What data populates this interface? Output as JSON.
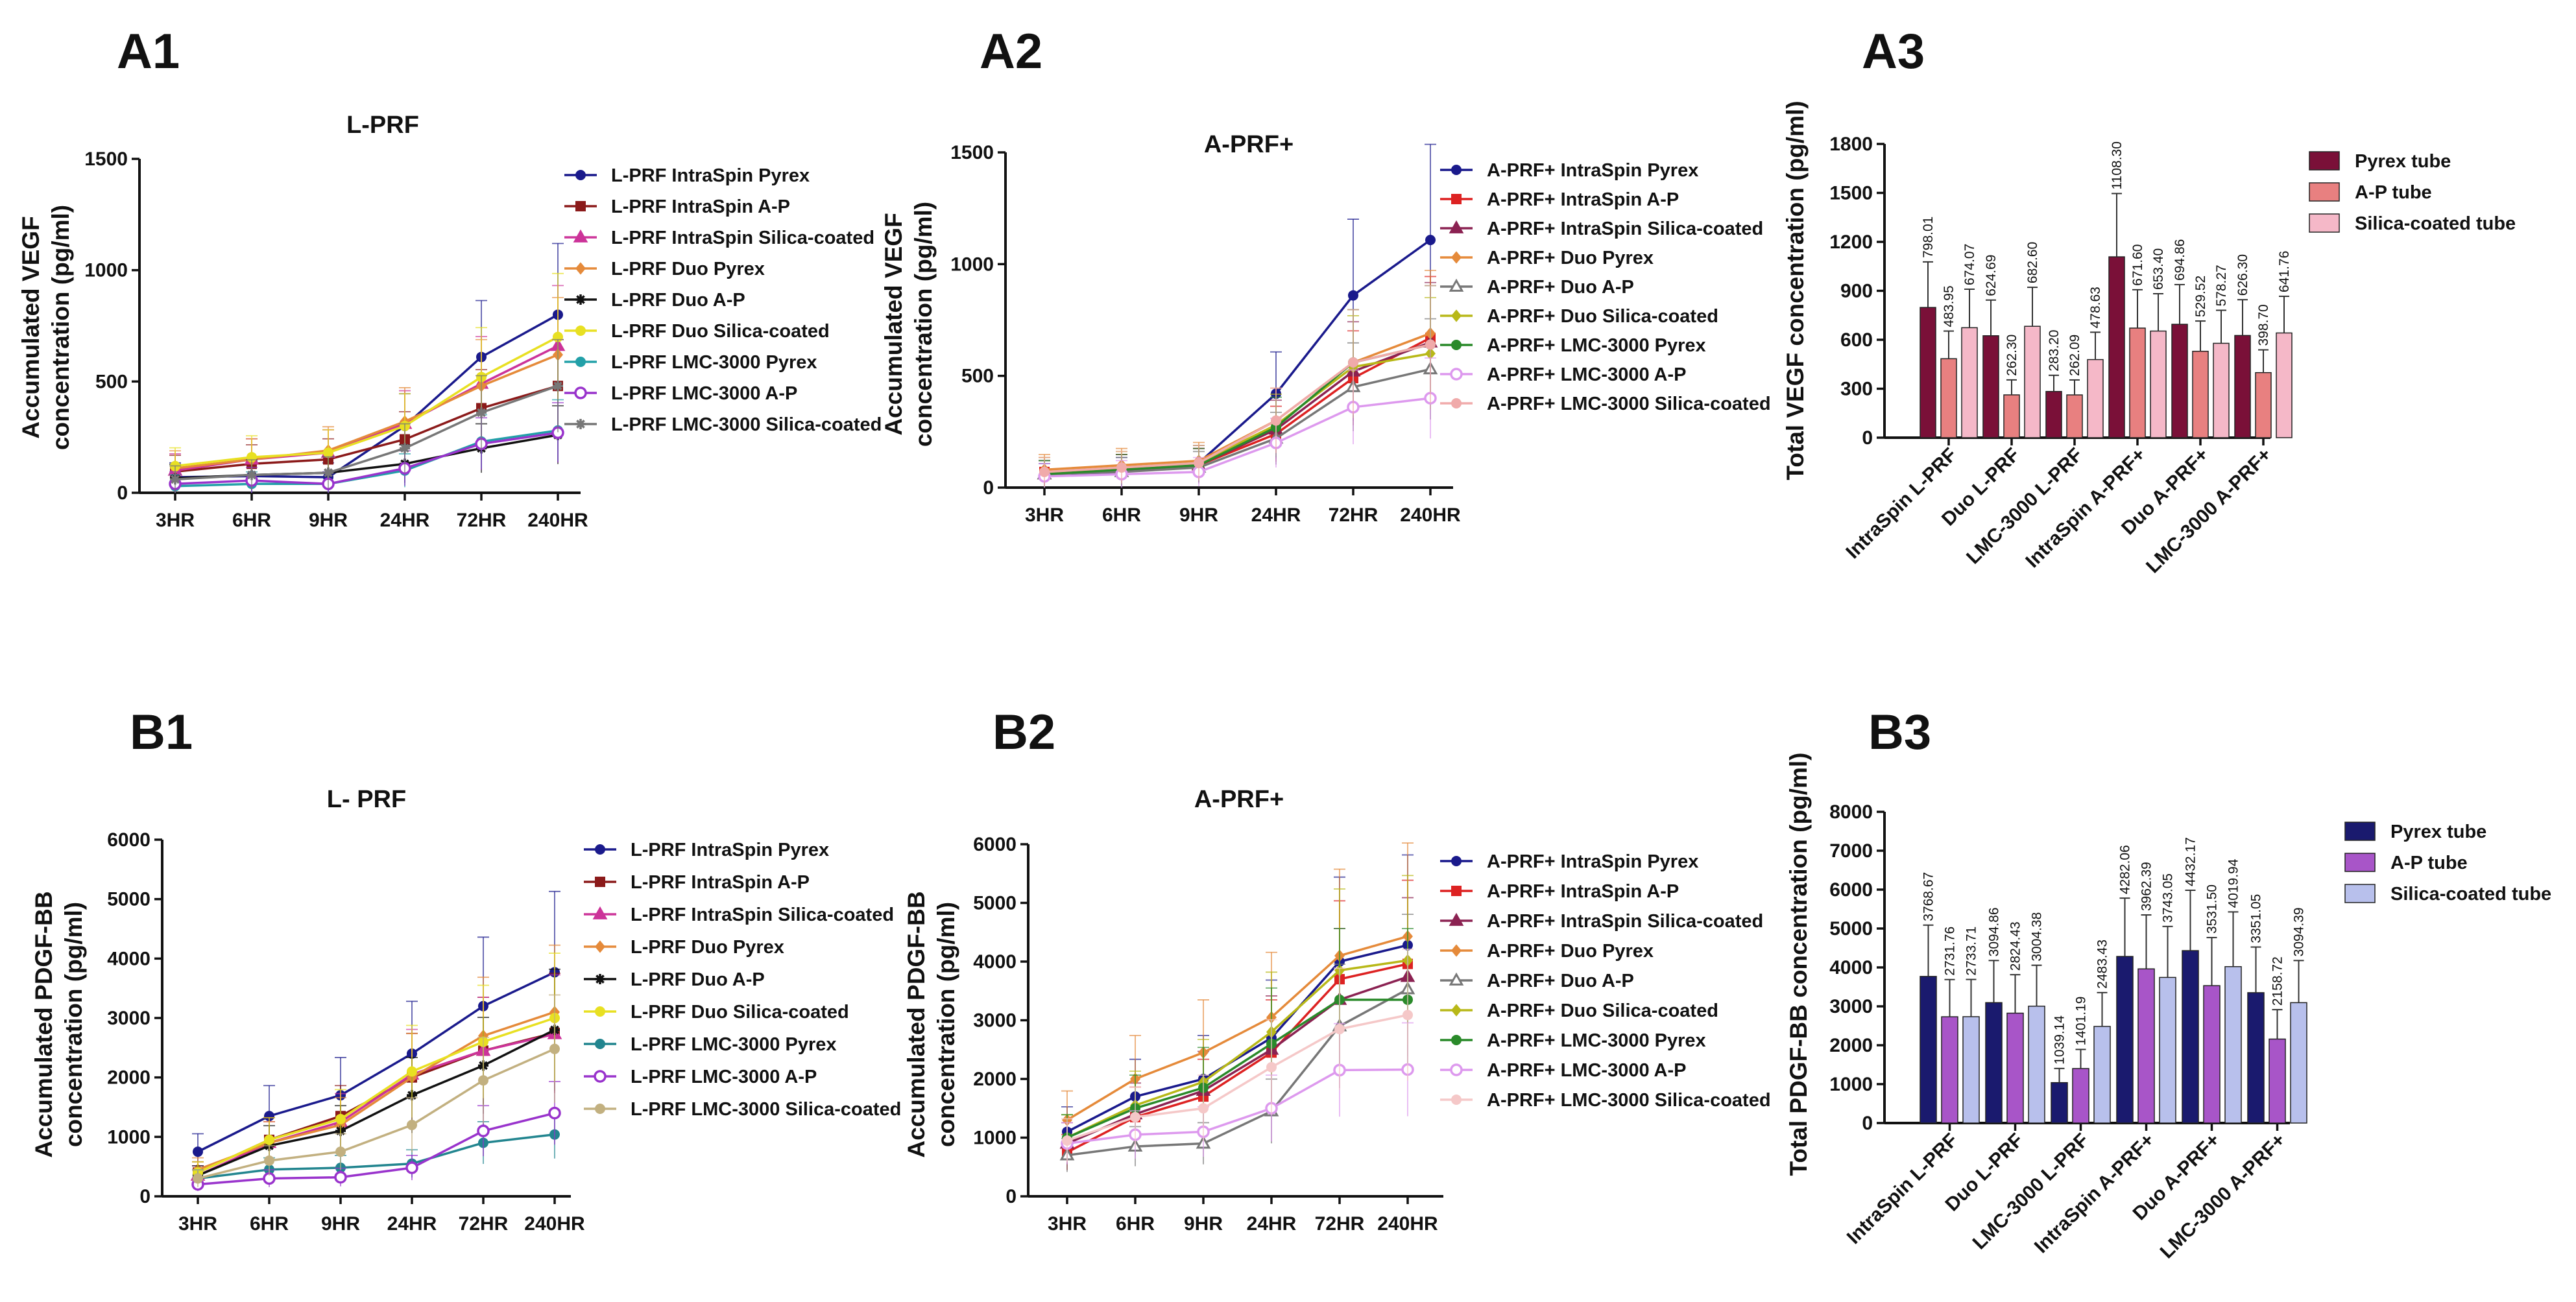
{
  "chart_data": [
    {
      "panel": "A1",
      "type": "line",
      "title": "L-PRF",
      "ylabel": "Accumulated VEGF concentration (pg/ml)",
      "ylabel_lines": [
        "Accumulated VEGF",
        "concentration (pg/ml)"
      ],
      "categories": [
        "3HR",
        "6HR",
        "9HR",
        "24HR",
        "72HR",
        "240HR"
      ],
      "ylim": [
        0,
        1500
      ],
      "yticks": [
        "0",
        "500",
        "1000",
        "1500"
      ],
      "series": [
        {
          "name": "L-PRF IntraSpin Pyrex",
          "color": "#1a1a8c",
          "marker": "circle",
          "values": [
            70,
            75,
            70,
            300,
            610,
            800
          ]
        },
        {
          "name": "L-PRF IntraSpin A-P",
          "color": "#8b1a1a",
          "marker": "square",
          "values": [
            95,
            130,
            150,
            240,
            380,
            480
          ]
        },
        {
          "name": "L-PRF IntraSpin Silica-coated",
          "color": "#cc3399",
          "marker": "triangle",
          "values": [
            100,
            150,
            180,
            310,
            490,
            660
          ]
        },
        {
          "name": "L-PRF Duo Pyrex",
          "color": "#e58a3a",
          "marker": "diamond",
          "values": [
            110,
            150,
            190,
            320,
            480,
            620
          ]
        },
        {
          "name": "L-PRF Duo A-P",
          "color": "#111111",
          "marker": "star",
          "values": [
            65,
            80,
            90,
            130,
            200,
            260
          ]
        },
        {
          "name": "L-PRF Duo Silica-coated",
          "color": "#e8e022",
          "marker": "circle",
          "values": [
            120,
            160,
            180,
            300,
            520,
            700
          ]
        },
        {
          "name": "L-PRF LMC-3000 Pyrex",
          "color": "#22a0a8",
          "marker": "circle",
          "values": [
            30,
            40,
            40,
            100,
            230,
            280
          ]
        },
        {
          "name": "L-PRF LMC-3000 A-P",
          "color": "#9933cc",
          "marker": "circle-open",
          "values": [
            40,
            55,
            40,
            110,
            220,
            270
          ]
        },
        {
          "name": "L-PRF LMC-3000 Silica-coated",
          "color": "#777777",
          "marker": "star",
          "values": [
            60,
            80,
            90,
            200,
            360,
            480
          ]
        }
      ]
    },
    {
      "panel": "A2",
      "type": "line",
      "title": "A-PRF+",
      "ylabel": "Accumulated VEGF concentration (pg/ml)",
      "ylabel_lines": [
        "Accumulated VEGF",
        "concentration (pg/ml)"
      ],
      "categories": [
        "3HR",
        "6HR",
        "9HR",
        "24HR",
        "72HR",
        "240HR"
      ],
      "ylim": [
        0,
        1500
      ],
      "yticks": [
        "0",
        "500",
        "1000",
        "1500"
      ],
      "series": [
        {
          "name": "A-PRF+ IntraSpin Pyrex",
          "color": "#1a1a8c",
          "marker": "circle",
          "values": [
            50,
            70,
            110,
            420,
            860,
            1108
          ]
        },
        {
          "name": "A-PRF+ IntraSpin A-P",
          "color": "#dd2222",
          "marker": "square",
          "values": [
            70,
            80,
            100,
            240,
            490,
            670
          ]
        },
        {
          "name": "A-PRF+ IntraSpin Silica-coated",
          "color": "#8b2252",
          "marker": "triangle",
          "values": [
            60,
            80,
            100,
            260,
            520,
            650
          ]
        },
        {
          "name": "A-PRF+ Duo Pyrex",
          "color": "#e58a3a",
          "marker": "diamond",
          "values": [
            80,
            100,
            120,
            300,
            560,
            690
          ]
        },
        {
          "name": "A-PRF+ Duo A-P",
          "color": "#777777",
          "marker": "triangle-open",
          "values": [
            60,
            70,
            90,
            220,
            450,
            530
          ]
        },
        {
          "name": "A-PRF+ Duo Silica-coated",
          "color": "#b8b818",
          "marker": "diamond",
          "values": [
            70,
            90,
            110,
            280,
            540,
            600
          ]
        },
        {
          "name": "A-PRF+ LMC-3000 Pyrex",
          "color": "#2a8a2a",
          "marker": "circle",
          "values": [
            60,
            80,
            100,
            270,
            560,
            640
          ]
        },
        {
          "name": "A-PRF+ LMC-3000 A-P",
          "color": "#dd99ee",
          "marker": "circle-open",
          "values": [
            50,
            60,
            70,
            200,
            360,
            400
          ]
        },
        {
          "name": "A-PRF+ LMC-3000 Silica-coated",
          "color": "#f0aaaa",
          "marker": "circle",
          "values": [
            70,
            90,
            110,
            300,
            560,
            640
          ]
        }
      ]
    },
    {
      "panel": "A3",
      "type": "bar",
      "ylabel": "Total VEGF concentration (pg/ml)",
      "categories": [
        "IntraSpin L-PRF",
        "Duo L-PRF",
        "LMC-3000 L-PRF",
        "IntraSpin A-PRF+",
        "Duo A-PRF+",
        "LMC-3000 A-PRF+"
      ],
      "ylim": [
        0,
        1800
      ],
      "yticks": [
        "0",
        "300",
        "600",
        "900",
        "1200",
        "1500",
        "1800"
      ],
      "series": [
        {
          "name": "Pyrex tube",
          "color": "#7a1038",
          "values": [
            798.01,
            624.69,
            283.2,
            1108.3,
            694.86,
            626.3
          ],
          "labels": [
            "798.01",
            "624.69",
            "283.20",
            "1108.30",
            "694.86",
            "626.30"
          ]
        },
        {
          "name": "A-P tube",
          "color": "#e88080",
          "values": [
            483.95,
            262.3,
            262.09,
            671.6,
            529.52,
            398.7
          ],
          "labels": [
            "483.95",
            "262.30",
            "262.09",
            "671.60",
            "529.52",
            "398.70"
          ]
        },
        {
          "name": "Silica-coated tube",
          "color": "#f5b8c8",
          "values": [
            674.07,
            682.6,
            478.63,
            653.4,
            578.27,
            641.76
          ],
          "labels": [
            "674.07",
            "682.60",
            "478.63",
            "653.40",
            "578.27",
            "641.76"
          ]
        }
      ]
    },
    {
      "panel": "B1",
      "type": "line",
      "title": "L- PRF",
      "ylabel": "Accumulated PDGF-BB concentration (pg/ml)",
      "ylabel_lines": [
        "Accumulated PDGF-BB",
        "concentration (pg/ml)"
      ],
      "categories": [
        "3HR",
        "6HR",
        "9HR",
        "24HR",
        "72HR",
        "240HR"
      ],
      "ylim": [
        0,
        6000
      ],
      "yticks": [
        "0",
        "1000",
        "2000",
        "3000",
        "4000",
        "5000",
        "6000"
      ],
      "series": [
        {
          "name": "L-PRF IntraSpin Pyrex",
          "color": "#1a1a8c",
          "marker": "circle",
          "values": [
            750,
            1350,
            1700,
            2400,
            3200,
            3770
          ]
        },
        {
          "name": "L-PRF IntraSpin A-P",
          "color": "#8b1a1a",
          "marker": "square",
          "values": [
            400,
            950,
            1350,
            2000,
            2450,
            2750
          ]
        },
        {
          "name": "L-PRF IntraSpin Silica-coated",
          "color": "#cc3399",
          "marker": "triangle",
          "values": [
            350,
            900,
            1250,
            2050,
            2450,
            2730
          ]
        },
        {
          "name": "L-PRF Duo Pyrex",
          "color": "#e58a3a",
          "marker": "diamond",
          "values": [
            450,
            900,
            1200,
            2000,
            2700,
            3100
          ]
        },
        {
          "name": "L-PRF Duo A-P",
          "color": "#111111",
          "marker": "star",
          "values": [
            350,
            850,
            1100,
            1700,
            2200,
            2800
          ]
        },
        {
          "name": "L-PRF Duo Silica-coated",
          "color": "#e8e022",
          "marker": "circle",
          "values": [
            400,
            950,
            1300,
            2100,
            2600,
            3000
          ]
        },
        {
          "name": "L-PRF LMC-3000 Pyrex",
          "color": "#22858f",
          "marker": "circle",
          "values": [
            300,
            450,
            480,
            550,
            900,
            1040
          ]
        },
        {
          "name": "L-PRF LMC-3000 A-P",
          "color": "#9933cc",
          "marker": "circle-open",
          "values": [
            200,
            300,
            320,
            480,
            1100,
            1400
          ]
        },
        {
          "name": "L-PRF LMC-3000 Silica-coated",
          "color": "#c2b080",
          "marker": "circle",
          "values": [
            300,
            600,
            750,
            1200,
            1950,
            2480
          ]
        }
      ]
    },
    {
      "panel": "B2",
      "type": "line",
      "title": "A-PRF+",
      "ylabel": "Accumulated PDGF-BB concentration (pg/ml)",
      "ylabel_lines": [
        "Accumulated PDGF-BB",
        "concentration (pg/ml)"
      ],
      "categories": [
        "3HR",
        "6HR",
        "9HR",
        "24HR",
        "72HR",
        "240HR"
      ],
      "ylim": [
        0,
        6000
      ],
      "yticks": [
        "0",
        "1000",
        "2000",
        "3000",
        "4000",
        "5000",
        "6000"
      ],
      "series": [
        {
          "name": "A-PRF+ IntraSpin Pyrex",
          "color": "#1a1a8c",
          "marker": "circle",
          "values": [
            1100,
            1700,
            2000,
            2700,
            4000,
            4280
          ]
        },
        {
          "name": "A-PRF+ IntraSpin A-P",
          "color": "#dd2222",
          "marker": "square",
          "values": [
            750,
            1350,
            1700,
            2450,
            3700,
            3960
          ]
        },
        {
          "name": "A-PRF+ IntraSpin Silica-coated",
          "color": "#8b2252",
          "marker": "triangle",
          "values": [
            900,
            1400,
            1800,
            2500,
            3350,
            3740
          ]
        },
        {
          "name": "A-PRF+ Duo Pyrex",
          "color": "#e58a3a",
          "marker": "diamond",
          "values": [
            1300,
            2000,
            2450,
            3050,
            4100,
            4430
          ]
        },
        {
          "name": "A-PRF+ Duo A-P",
          "color": "#777777",
          "marker": "triangle-open",
          "values": [
            700,
            850,
            900,
            1450,
            2900,
            3530
          ]
        },
        {
          "name": "A-PRF+ Duo Silica-coated",
          "color": "#b8b818",
          "marker": "diamond",
          "values": [
            1000,
            1550,
            1950,
            2800,
            3850,
            4020
          ]
        },
        {
          "name": "A-PRF+ LMC-3000 Pyrex",
          "color": "#2a8a2a",
          "marker": "circle",
          "values": [
            1000,
            1500,
            1850,
            2600,
            3350,
            3350
          ]
        },
        {
          "name": "A-PRF+ LMC-3000 A-P",
          "color": "#dd99ee",
          "marker": "circle-open",
          "values": [
            900,
            1050,
            1100,
            1500,
            2150,
            2160
          ]
        },
        {
          "name": "A-PRF+ LMC-3000 Silica-coated",
          "color": "#f5c8c8",
          "marker": "circle",
          "values": [
            950,
            1350,
            1500,
            2200,
            2850,
            3090
          ]
        }
      ]
    },
    {
      "panel": "B3",
      "type": "bar",
      "ylabel": "Total PDGF-BB concentration (pg/ml)",
      "categories": [
        "IntraSpin L-PRF",
        "Duo L-PRF",
        "LMC-3000 L-PRF",
        "IntraSpin A-PRF+",
        "Duo A-PRF+",
        "LMC-3000 A-PRF+"
      ],
      "ylim": [
        0,
        8000
      ],
      "yticks": [
        "0",
        "1000",
        "2000",
        "3000",
        "4000",
        "5000",
        "6000",
        "7000",
        "8000"
      ],
      "series": [
        {
          "name": "Pyrex tube",
          "color": "#1a1a6e",
          "values": [
            3768.67,
            3094.86,
            1039.14,
            4282.06,
            4432.17,
            3351.05
          ],
          "labels": [
            "3768.67",
            "3094.86",
            "1039.14",
            "4282.06",
            "4432.17",
            "3351.05"
          ]
        },
        {
          "name": "A-P tube",
          "color": "#a855c8",
          "values": [
            2731.76,
            2824.43,
            1401.19,
            3962.39,
            3531.5,
            2158.72
          ],
          "labels": [
            "2731.76",
            "2824.43",
            "1401.19",
            "3962.39",
            "3531.50",
            "2158.72"
          ]
        },
        {
          "name": "Silica-coated tube",
          "color": "#b8c0ec",
          "values": [
            2733.71,
            3004.38,
            2483.43,
            3743.05,
            4019.94,
            3094.39
          ],
          "labels": [
            "2733.71",
            "3004.38",
            "2483.43",
            "3743.05",
            "4019.94",
            "3094.39"
          ]
        }
      ]
    }
  ]
}
